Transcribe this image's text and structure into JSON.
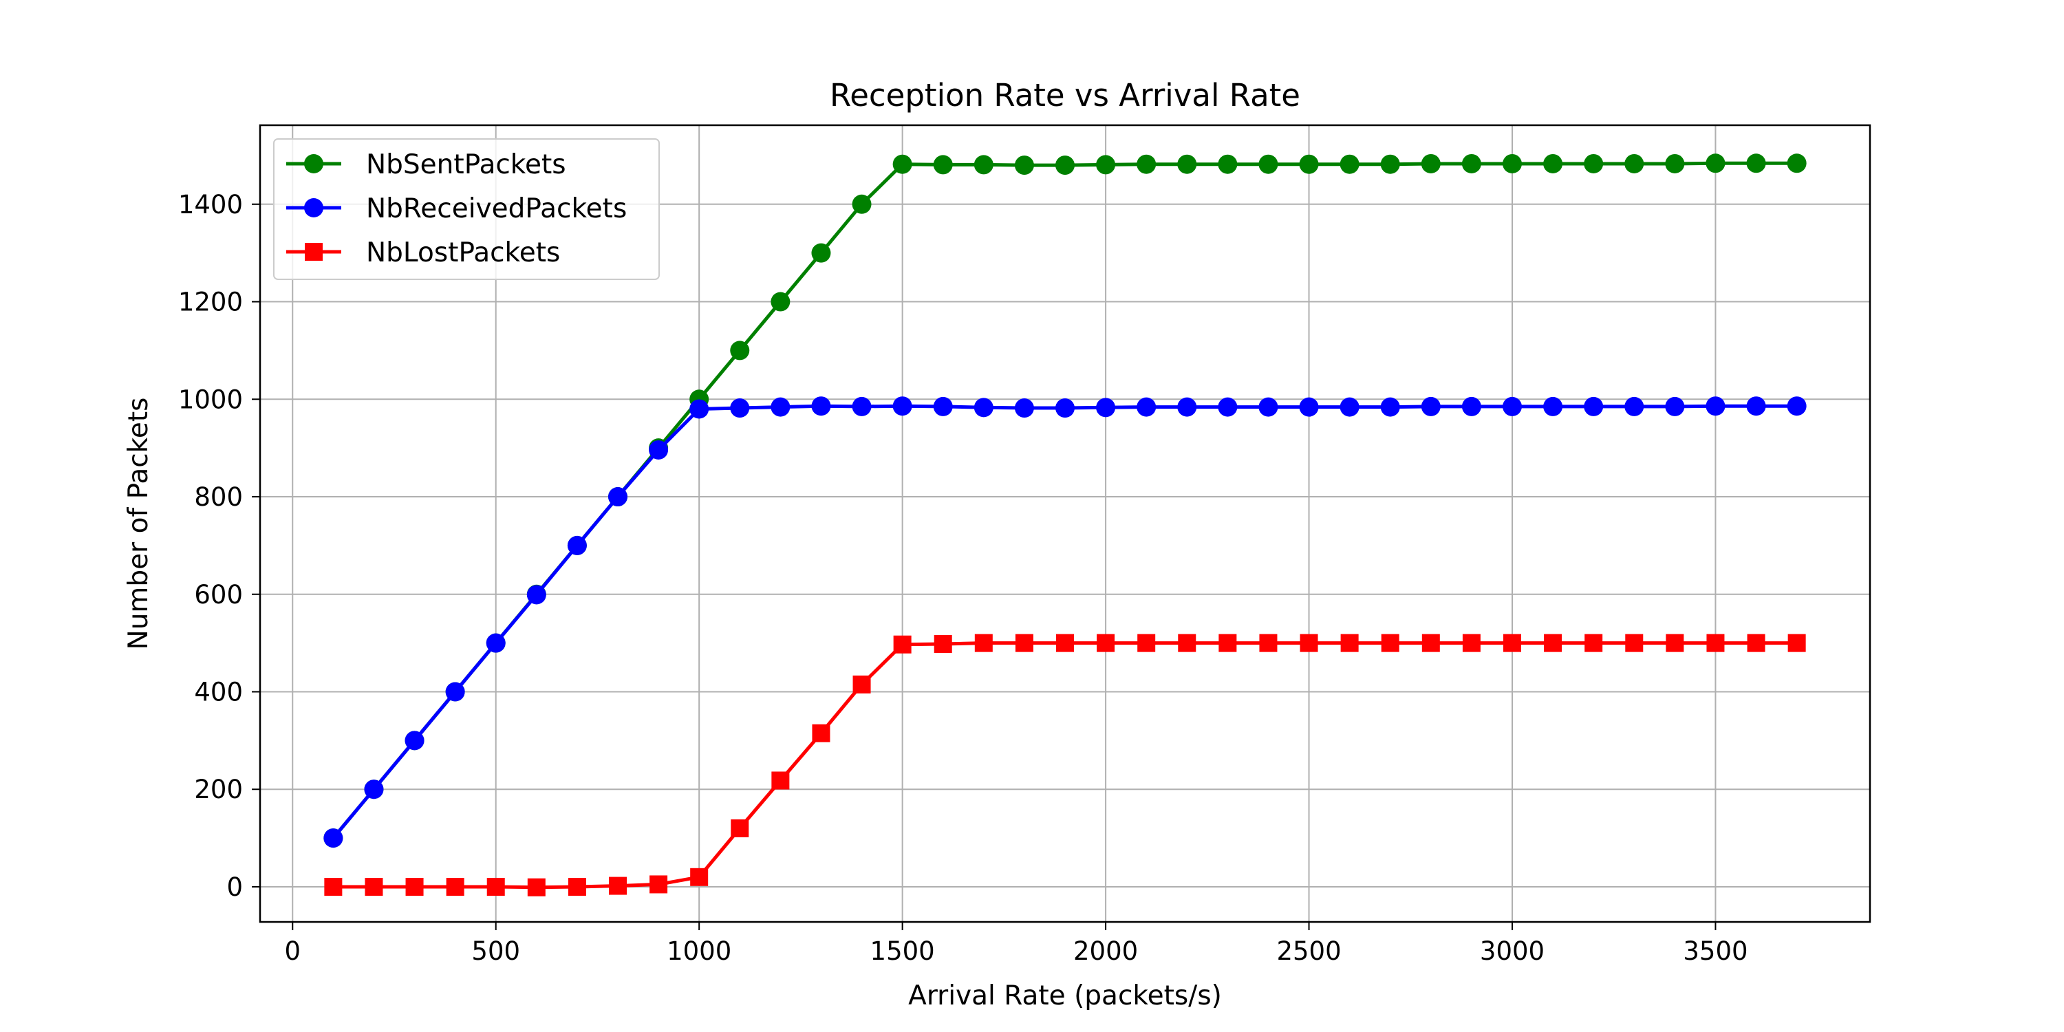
{
  "chart_data": {
    "type": "line",
    "title": "Reception Rate vs Arrival Rate",
    "xlabel": "Arrival Rate (packets/s)",
    "ylabel": "Number of Packets",
    "xlim": [
      -80,
      3880
    ],
    "ylim": [
      -72,
      1562
    ],
    "xticks": [
      0,
      500,
      1000,
      1500,
      2000,
      2500,
      3000,
      3500
    ],
    "yticks": [
      0,
      200,
      400,
      600,
      800,
      1000,
      1200,
      1400
    ],
    "grid": true,
    "legend_position": "top-left",
    "x": [
      100,
      200,
      300,
      400,
      500,
      600,
      700,
      800,
      900,
      1000,
      1100,
      1200,
      1300,
      1400,
      1500,
      1600,
      1700,
      1800,
      1900,
      2000,
      2100,
      2200,
      2300,
      2400,
      2500,
      2600,
      2700,
      2800,
      2900,
      3000,
      3100,
      3200,
      3300,
      3400,
      3500,
      3600,
      3700
    ],
    "series": [
      {
        "name": "NbSentPackets",
        "color": "#008000",
        "marker": "circle",
        "values": [
          100,
          200,
          300,
          400,
          500,
          600,
          700,
          800,
          900,
          1000,
          1100,
          1200,
          1300,
          1400,
          1482,
          1481,
          1481,
          1480,
          1480,
          1481,
          1482,
          1482,
          1482,
          1482,
          1482,
          1482,
          1482,
          1483,
          1483,
          1483,
          1483,
          1483,
          1483,
          1483,
          1484,
          1484,
          1484
        ]
      },
      {
        "name": "NbReceivedPackets",
        "color": "#0000ff",
        "marker": "circle",
        "values": [
          100,
          200,
          300,
          400,
          500,
          599,
          700,
          800,
          896,
          980,
          982,
          984,
          986,
          985,
          986,
          985,
          983,
          982,
          982,
          983,
          984,
          984,
          984,
          984,
          984,
          984,
          984,
          985,
          985,
          985,
          985,
          985,
          985,
          985,
          986,
          986,
          986
        ]
      },
      {
        "name": "NbLostPackets",
        "color": "#ff0000",
        "marker": "square",
        "values": [
          0,
          0,
          0,
          0,
          0,
          -1,
          0,
          2,
          5,
          20,
          120,
          218,
          315,
          415,
          497,
          498,
          500,
          500,
          500,
          500,
          500,
          500,
          500,
          500,
          500,
          500,
          500,
          500,
          500,
          500,
          500,
          500,
          500,
          500,
          500,
          500,
          500
        ]
      }
    ]
  }
}
